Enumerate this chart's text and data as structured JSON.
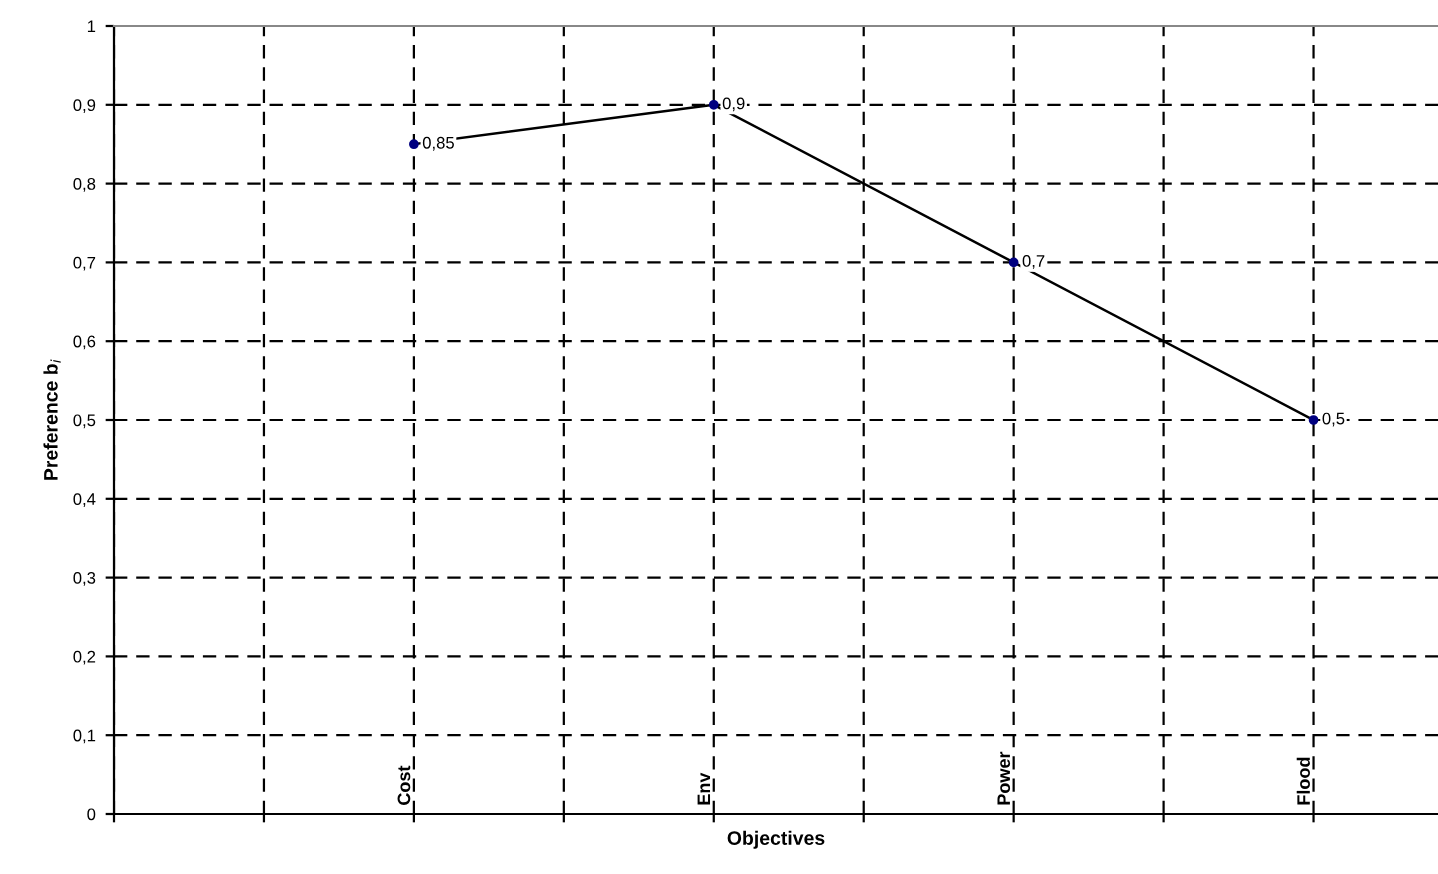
{
  "chart_data": {
    "type": "line",
    "xlabel": "Objectives",
    "ylabel": "Preference b$_{i}$",
    "categories": [
      null,
      null,
      "Cost",
      null,
      "Env",
      null,
      "Power",
      null,
      "Flood"
    ],
    "series": [
      {
        "color": "#000080",
        "values": [
          null,
          null,
          0.85,
          null,
          0.9,
          null,
          0.7,
          null,
          0.5
        ],
        "value_labels": [
          null,
          null,
          "0,85",
          null,
          "0,9",
          null,
          "0,7",
          null,
          "0,5"
        ]
      }
    ],
    "ylim": [
      0,
      1
    ],
    "yticks": [
      0,
      {
        "value": 0.1,
        "label": "0,1"
      },
      {
        "value": 0.2,
        "label": "0,2"
      },
      {
        "value": 0.3,
        "label": "0,3"
      },
      {
        "value": 0.4,
        "label": "0,4"
      },
      {
        "value": 0.5,
        "label": "0,5"
      },
      {
        "value": 0.6,
        "label": "0,6"
      },
      {
        "value": 0.7,
        "label": "0,7"
      },
      {
        "value": 0.8,
        "label": "0,8"
      },
      {
        "value": 0.9,
        "label": "0,9"
      },
      1
    ],
    "grid": true,
    "marker": "circle",
    "line_style": "solid",
    "legend": false
  }
}
